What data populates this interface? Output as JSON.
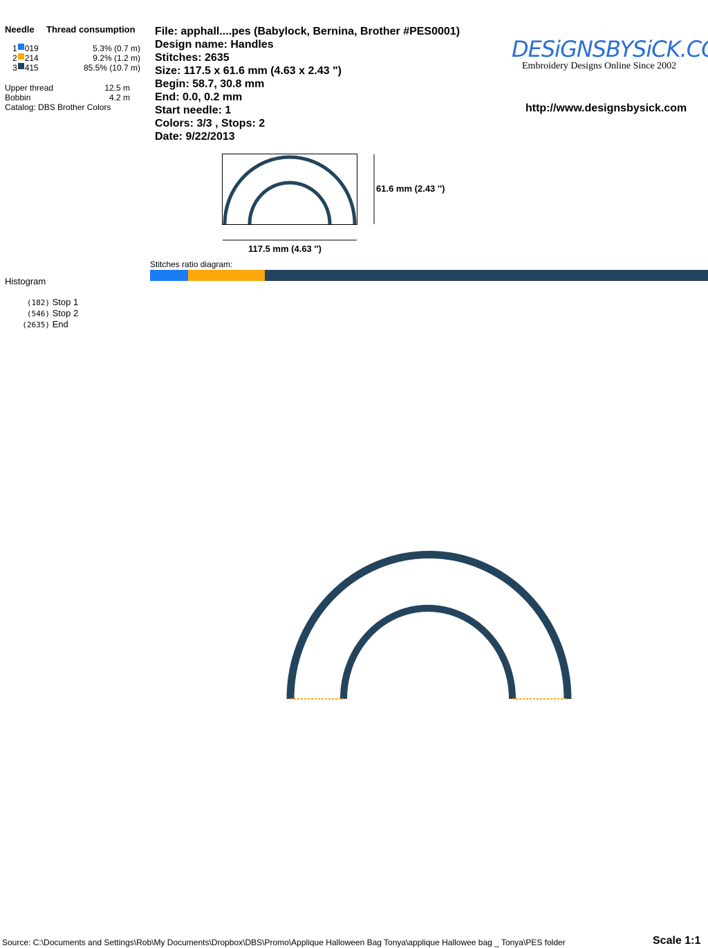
{
  "left_panel": {
    "needle_header": "Needle",
    "thread_header": "Thread consumption",
    "threads": [
      {
        "needle": "1",
        "code": "019",
        "consumption": "5.3% (0.7 m)",
        "color": "#1a7cf5"
      },
      {
        "needle": "2",
        "code": "214",
        "consumption": "9.2% (1.2 m)",
        "color": "#fba80c"
      },
      {
        "needle": "3",
        "code": "415",
        "consumption": "85.5% (10.7 m)",
        "color": "#23445c"
      }
    ],
    "upper_thread_label": "Upper thread",
    "upper_thread_value": "12.5 m",
    "bobbin_label": "Bobbin",
    "bobbin_value": "4.2 m",
    "catalog": "Catalog: DBS Brother Colors",
    "histogram_label": "Histogram",
    "stops": [
      {
        "count": "(182)",
        "label": "Stop 1"
      },
      {
        "count": "(546)",
        "label": "Stop 2"
      },
      {
        "count": "(2635)",
        "label": "End"
      }
    ]
  },
  "info": {
    "file": "File: apphall....pes  (Babylock, Bernina, Brother #PES0001)",
    "design_name": "Design name: Handles",
    "stitches": "Stitches: 2635",
    "size": "Size: 117.5 x 61.6 mm (4.63 x 2.43 \")",
    "begin": "Begin: 58.7, 30.8 mm",
    "end": "End: 0.0, 0.2 mm",
    "start_needle": "Start needle: 1",
    "colors": "Colors: 3/3 , Stops: 2",
    "date": "Date: 9/22/2013"
  },
  "logo": {
    "text": "DesignsBySick.com",
    "tagline": "Embroidery Designs Online Since 2002"
  },
  "url": "http://www.designsbysick.com",
  "preview": {
    "height_label": "61.6 mm (2.43 '')",
    "width_label": "117.5 mm (4.63 '')"
  },
  "ratio": {
    "label": "Stitches ratio diagram:",
    "segments": [
      5.3,
      9.2,
      85.5
    ]
  },
  "footer": {
    "source": "Source: C:\\Documents and Settings\\Rob\\My Documents\\Dropbox\\DBS\\Promo\\Applique Halloween Bag  Tonya\\applique Hallowee bag _ Tonya\\PES folder",
    "scale": "Scale 1:1"
  }
}
